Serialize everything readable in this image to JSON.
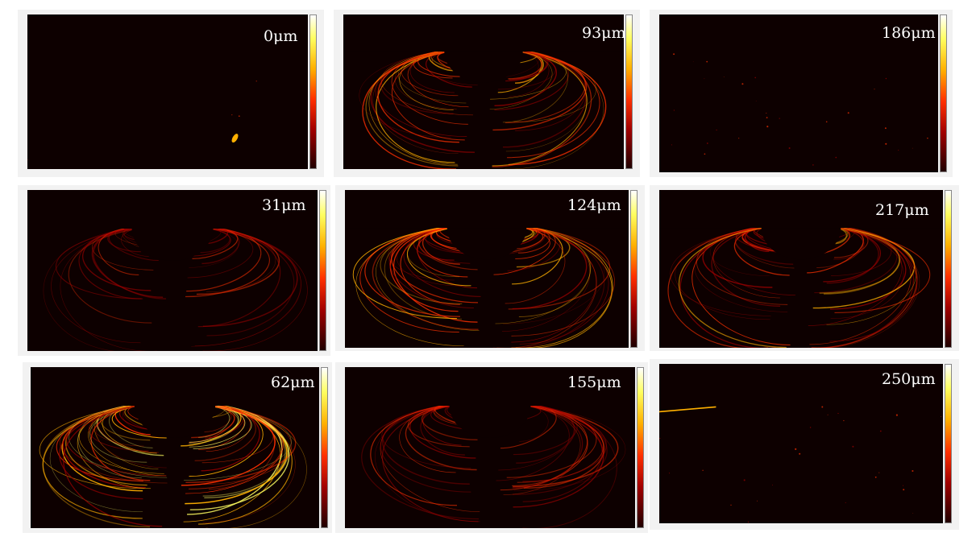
{
  "panels": [
    {
      "label": "0μm",
      "intensity": 0.0,
      "crater": false
    },
    {
      "label": "93μm",
      "intensity": 0.75,
      "crater": true
    },
    {
      "label": "186μm",
      "intensity": 0.12,
      "crater": false
    },
    {
      "label": "31μm",
      "intensity": 0.45,
      "crater": true
    },
    {
      "label": "124μm",
      "intensity": 0.85,
      "crater": true
    },
    {
      "label": "217μm",
      "intensity": 0.7,
      "crater": true
    },
    {
      "label": "62μm",
      "intensity": 1.0,
      "crater": true
    },
    {
      "label": "155μm",
      "intensity": 0.55,
      "crater": true
    },
    {
      "label": "250μm",
      "intensity": 0.1,
      "crater": false
    }
  ],
  "colormap": [
    "#200000",
    "#a00000",
    "#ff3000",
    "#ffb000",
    "#ffff60",
    "#ffffff"
  ]
}
